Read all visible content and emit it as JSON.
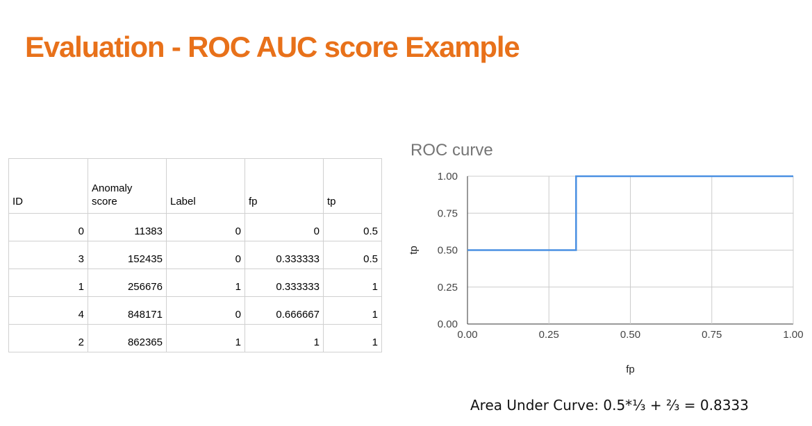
{
  "title": "Evaluation - ROC AUC score Example",
  "table": {
    "headers": [
      "ID",
      "Anomaly\nscore",
      "Label",
      "fp",
      "tp"
    ],
    "rows": [
      [
        "0",
        "11383",
        "0",
        "0",
        "0.5"
      ],
      [
        "3",
        "152435",
        "0",
        "0.333333",
        "0.5"
      ],
      [
        "1",
        "256676",
        "1",
        "0.333333",
        "1"
      ],
      [
        "4",
        "848171",
        "0",
        "0.666667",
        "1"
      ],
      [
        "2",
        "862365",
        "1",
        "1",
        "1"
      ]
    ]
  },
  "chart_data": {
    "type": "line",
    "title": "ROC curve",
    "xlabel": "fp",
    "ylabel": "tp",
    "xlim": [
      0,
      1
    ],
    "ylim": [
      0,
      1
    ],
    "xticks": [
      "0.00",
      "0.25",
      "0.50",
      "0.75",
      "1.00"
    ],
    "yticks": [
      "0.00",
      "0.25",
      "0.50",
      "0.75",
      "1.00"
    ],
    "grid": true,
    "line_color": "#4a90e2",
    "series": [
      {
        "x": [
          0,
          0.333333,
          0.333333,
          1
        ],
        "y": [
          0.5,
          0.5,
          1,
          1
        ]
      }
    ]
  },
  "auc_text": "Area Under Curve: 0.5*⅓ + ⅔  = 0.8333"
}
